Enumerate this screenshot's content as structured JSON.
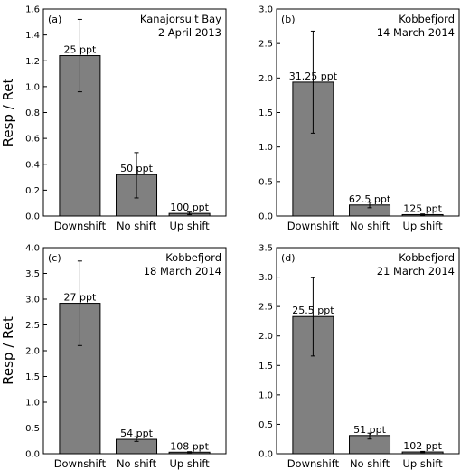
{
  "figure": {
    "ylabel": "Resp / Ret"
  },
  "chart_data": [
    {
      "type": "bar",
      "panel": "(a)",
      "title_lines": [
        "Kanajorsuit Bay",
        "2 April 2013"
      ],
      "categories": [
        "Downshift",
        "No shift",
        "Up shift"
      ],
      "values": [
        1.24,
        0.32,
        0.02
      ],
      "error": [
        [
          0.96,
          1.52
        ],
        [
          0.14,
          0.49
        ],
        [
          0.01,
          0.03
        ]
      ],
      "bar_labels": [
        "25 ppt",
        "50 ppt",
        "100 ppt"
      ],
      "ylim": [
        0,
        1.6
      ],
      "yticks": [
        "0.0",
        "0.2",
        "0.4",
        "0.6",
        "0.8",
        "1.0",
        "1.2",
        "1.4",
        "1.6"
      ],
      "ylabel": "Resp / Ret"
    },
    {
      "type": "bar",
      "panel": "(b)",
      "title_lines": [
        "Kobbefjord",
        "14 March 2014"
      ],
      "categories": [
        "Downshift",
        "No shift",
        "Up shift"
      ],
      "values": [
        1.94,
        0.16,
        0.02
      ],
      "error": [
        [
          1.2,
          2.68
        ],
        [
          0.12,
          0.2
        ],
        [
          0.01,
          0.03
        ]
      ],
      "bar_labels": [
        "31.25 ppt",
        "62.5 ppt",
        "125 ppt"
      ],
      "ylim": [
        0,
        3.0
      ],
      "yticks": [
        "0.0",
        "0.5",
        "1.0",
        "1.5",
        "2.0",
        "2.5",
        "3.0"
      ],
      "ylabel": ""
    },
    {
      "type": "bar",
      "panel": "(c)",
      "title_lines": [
        "Kobbefjord",
        "18 March 2014"
      ],
      "categories": [
        "Downshift",
        "No shift",
        "Up shift"
      ],
      "values": [
        2.92,
        0.28,
        0.03
      ],
      "error": [
        [
          2.1,
          3.74
        ],
        [
          0.24,
          0.33
        ],
        [
          0.02,
          0.04
        ]
      ],
      "bar_labels": [
        "27 ppt",
        "54 ppt",
        "108 ppt"
      ],
      "ylim": [
        0,
        4.0
      ],
      "yticks": [
        "0.0",
        "0.5",
        "1.0",
        "1.5",
        "2.0",
        "2.5",
        "3.0",
        "3.5",
        "4.0"
      ],
      "ylabel": "Resp / Ret"
    },
    {
      "type": "bar",
      "panel": "(d)",
      "title_lines": [
        "Kobbefjord",
        "21 March 2014"
      ],
      "categories": [
        "Downshift",
        "No shift",
        "Up shift"
      ],
      "values": [
        2.33,
        0.31,
        0.03
      ],
      "error": [
        [
          1.66,
          2.99
        ],
        [
          0.25,
          0.35
        ],
        [
          0.02,
          0.04
        ]
      ],
      "bar_labels": [
        "25.5 ppt",
        "51 ppt",
        "102 ppt"
      ],
      "ylim": [
        0,
        3.5
      ],
      "yticks": [
        "0.0",
        "0.5",
        "1.0",
        "1.5",
        "2.0",
        "2.5",
        "3.0",
        "3.5"
      ],
      "ylabel": ""
    }
  ],
  "colors": {
    "bar_fill": "#808080",
    "bar_stroke": "#000000",
    "axis": "#000000"
  }
}
